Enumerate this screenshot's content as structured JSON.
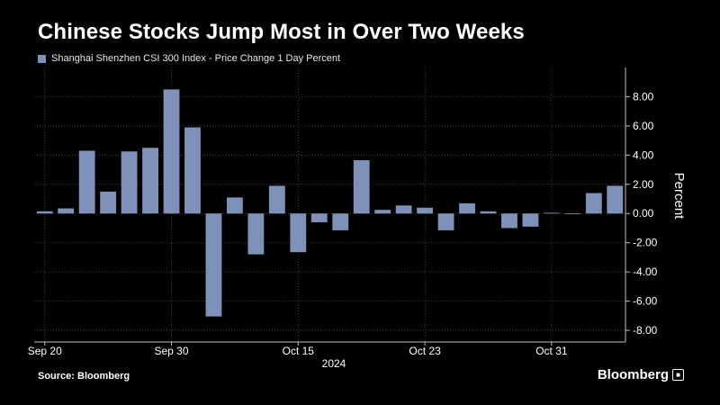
{
  "header": {
    "title": "Chinese Stocks Jump Most in Over Two Weeks"
  },
  "footer": {
    "source": "Source: Bloomberg",
    "brand": "Bloomberg"
  },
  "colors": {
    "background": "#000000",
    "bar": "#7e91b8",
    "text": "#ffffff"
  },
  "chart_data": {
    "type": "bar",
    "title": "Chinese Stocks Jump Most in Over Two Weeks",
    "series": [
      {
        "name": "Shanghai Shenzhen CSI 300 Index - Price Change 1 Day Percent",
        "values": [
          0.15,
          0.35,
          4.3,
          1.5,
          4.25,
          4.5,
          8.5,
          5.9,
          -7.05,
          1.1,
          -2.8,
          1.9,
          -2.65,
          -0.6,
          -1.15,
          3.65,
          0.25,
          0.55,
          0.4,
          -1.15,
          0.7,
          0.15,
          -1.0,
          -0.9,
          0.05,
          -0.05,
          1.4,
          1.9
        ]
      }
    ],
    "x_tick_labels": [
      "Sep 20",
      "Sep 30",
      "Oct 15",
      "Oct 23",
      "Oct 31"
    ],
    "x_tick_bar_index": [
      0,
      6,
      12,
      18,
      24
    ],
    "x_sublabel": "2024",
    "ylabel": "Percent",
    "ylim": [
      -8.8,
      10
    ],
    "yticks": [
      8,
      6,
      4,
      2,
      0,
      -2,
      -4,
      -6,
      -8
    ],
    "ytick_labels": [
      "8.00",
      "6.00",
      "4.00",
      "2.00",
      "0.00",
      "-2.00",
      "-4.00",
      "-6.00",
      "-8.00"
    ],
    "grid": true,
    "legend_position": "top-left"
  }
}
